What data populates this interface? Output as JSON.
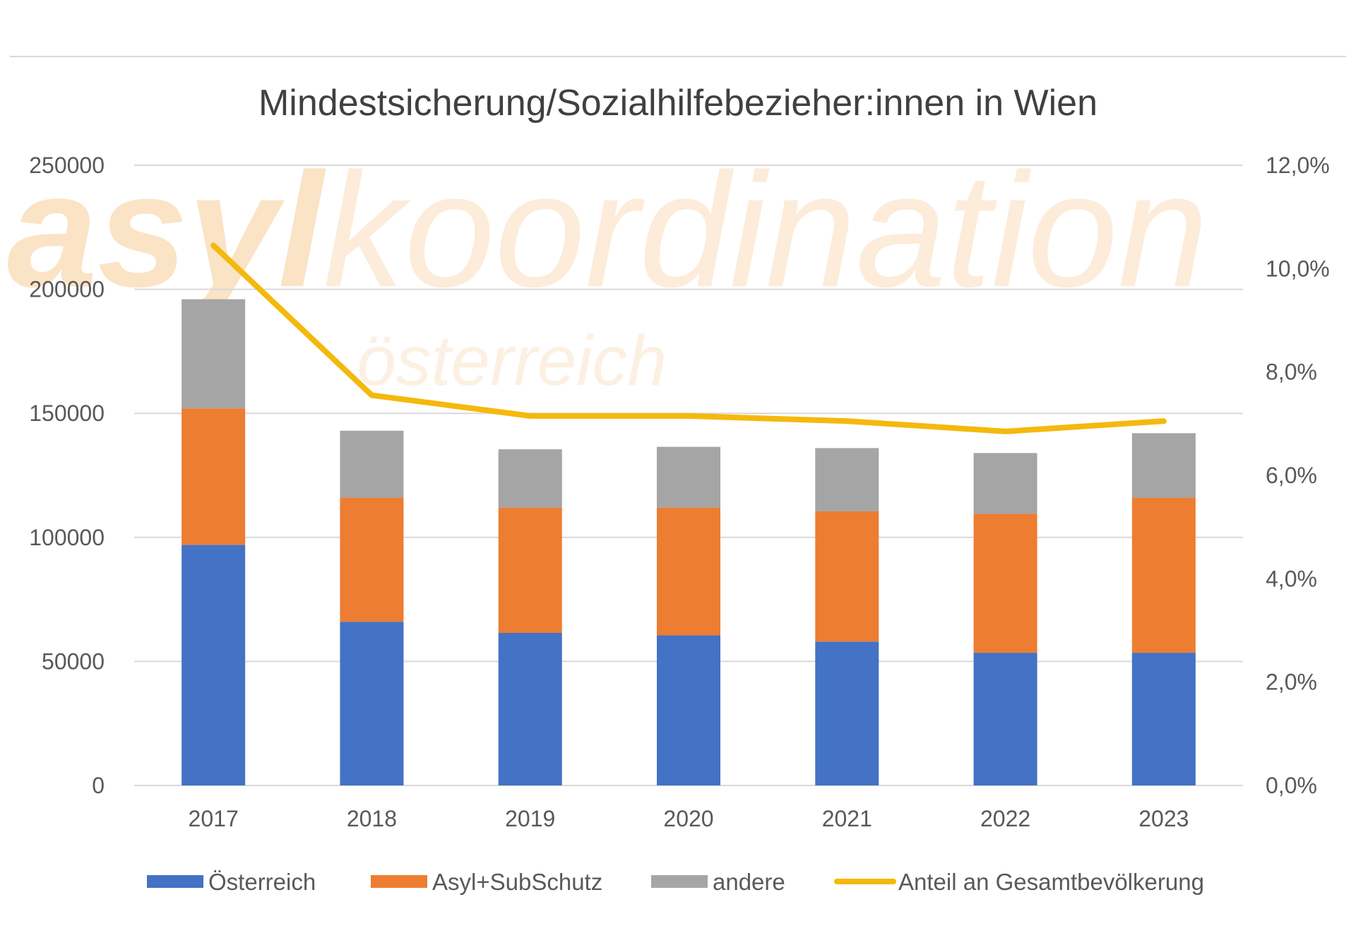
{
  "watermark": {
    "brand_bold": "asyl",
    "brand_light": "koordination",
    "sub": "österreich"
  },
  "colors": {
    "oesterreich": "#4472c4",
    "asyl": "#ed7d31",
    "andere": "#a5a5a5",
    "anteil": "#f4b90c",
    "grid": "#d9d9d9",
    "text": "#595959"
  },
  "chart_data": {
    "type": "bar",
    "stacked": true,
    "title": "Mindestsicherung/Sozialhilfebezieher:innen in Wien",
    "categories": [
      "2017",
      "2018",
      "2019",
      "2020",
      "2021",
      "2022",
      "2023"
    ],
    "series": [
      {
        "name": "Österreich",
        "values": [
          97000,
          66000,
          61500,
          60500,
          58000,
          53500,
          53500
        ]
      },
      {
        "name": "Asyl+SubSchutz",
        "values": [
          55000,
          50000,
          50500,
          51500,
          52500,
          56000,
          62500
        ]
      },
      {
        "name": "andere",
        "values": [
          44000,
          27000,
          23500,
          24500,
          25500,
          24500,
          26000
        ]
      }
    ],
    "line_series": {
      "name": "Anteil an Gesamtbevölkerung",
      "axis": "right",
      "values": [
        10.45,
        7.55,
        7.15,
        7.15,
        7.05,
        6.85,
        7.05
      ]
    },
    "y_left": {
      "ylim": [
        0,
        250000
      ],
      "ticks": [
        0,
        50000,
        100000,
        150000,
        200000,
        250000
      ],
      "tick_labels": [
        "0",
        "50000",
        "100000",
        "150000",
        "200000",
        "250000"
      ]
    },
    "y_right": {
      "ylim": [
        0,
        12
      ],
      "ticks": [
        0,
        2,
        4,
        6,
        8,
        10,
        12
      ],
      "tick_labels": [
        "0,0%",
        "2,0%",
        "4,0%",
        "6,0%",
        "8,0%",
        "10,0%",
        "12,0%"
      ]
    },
    "grid": true,
    "legend_position": "bottom"
  }
}
